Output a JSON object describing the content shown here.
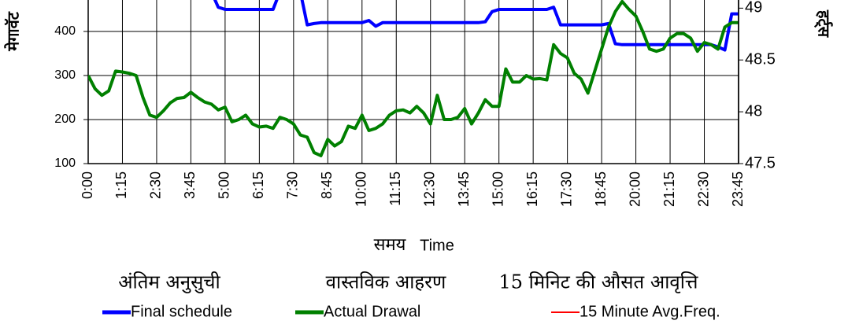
{
  "chart_data": {
    "type": "line",
    "ylabel": "मेगावॅट",
    "y2label": "हर्ट्स",
    "xlabel_hindi": "समय",
    "xlabel": "Time",
    "legend_titles": [
      "अंतिम अनुसुची",
      "वास्तविक आहरण",
      "15 मिनिट की औसत आवृत्ति"
    ],
    "categories": [
      "0:00",
      null,
      null,
      null,
      null,
      "1:15",
      null,
      null,
      null,
      null,
      "2:30",
      null,
      null,
      null,
      null,
      "3:45",
      null,
      null,
      null,
      null,
      "5:00",
      null,
      null,
      null,
      null,
      "6:15",
      null,
      null,
      null,
      null,
      "7:30",
      null,
      null,
      null,
      null,
      "8:45",
      null,
      null,
      null,
      null,
      "10:00",
      null,
      null,
      null,
      null,
      "11:15",
      null,
      null,
      null,
      null,
      "12:30",
      null,
      null,
      null,
      null,
      "13:45",
      null,
      null,
      null,
      null,
      "15:00",
      null,
      null,
      null,
      null,
      "16:15",
      null,
      null,
      null,
      null,
      "17:30",
      null,
      null,
      null,
      null,
      "18:45",
      null,
      null,
      null,
      null,
      "20:00",
      null,
      null,
      null,
      null,
      "21:15",
      null,
      null,
      null,
      null,
      "22:30",
      null,
      null,
      null,
      null,
      "23:45"
    ],
    "ylim": [
      100,
      500
    ],
    "yticks": [
      100,
      200,
      300,
      400
    ],
    "y2lim": [
      47.5,
      49.2
    ],
    "y2ticks": [
      47.5,
      48,
      48.5,
      49
    ],
    "grid": true,
    "series": [
      {
        "name": "Final schedule",
        "color": "#0000ff",
        "values": [
          490,
          490,
          490,
          490,
          490,
          490,
          490,
          490,
          490,
          490,
          490,
          490,
          490,
          490,
          490,
          490,
          490,
          490,
          490,
          455,
          450,
          450,
          450,
          450,
          450,
          450,
          450,
          450,
          490,
          490,
          490,
          490,
          415,
          418,
          420,
          420,
          420,
          420,
          420,
          420,
          420,
          425,
          412,
          420,
          420,
          420,
          420,
          420,
          420,
          420,
          420,
          420,
          420,
          420,
          420,
          420,
          420,
          420,
          422,
          445,
          450,
          450,
          450,
          450,
          450,
          450,
          450,
          450,
          455,
          415,
          415,
          415,
          415,
          415,
          415,
          415,
          418,
          372,
          370,
          370,
          370,
          370,
          370,
          370,
          370,
          370,
          370,
          370,
          370,
          370,
          370,
          370,
          365,
          358,
          440,
          440
        ]
      },
      {
        "name": "Actual Drawal",
        "color": "#008000",
        "values": [
          300,
          270,
          255,
          265,
          310,
          308,
          305,
          300,
          250,
          210,
          205,
          220,
          238,
          248,
          250,
          262,
          250,
          240,
          235,
          222,
          228,
          195,
          200,
          210,
          190,
          183,
          185,
          180,
          205,
          200,
          190,
          165,
          160,
          125,
          118,
          155,
          140,
          150,
          185,
          180,
          210,
          175,
          180,
          190,
          210,
          220,
          222,
          215,
          230,
          215,
          190,
          255,
          200,
          200,
          205,
          225,
          190,
          215,
          245,
          230,
          230,
          315,
          285,
          285,
          300,
          292,
          293,
          290,
          370,
          350,
          340,
          305,
          292,
          260,
          310,
          360,
          410,
          445,
          468,
          450,
          435,
          400,
          360,
          355,
          360,
          385,
          395,
          395,
          385,
          355,
          375,
          370,
          360,
          410,
          420,
          420
        ]
      },
      {
        "name": "15 Minute Avg.Freq.",
        "color": "#ff0000",
        "axis": "y2",
        "values": [
          null,
          null,
          null,
          null,
          null,
          null,
          null,
          null,
          null,
          null,
          null,
          null,
          null,
          null,
          null,
          null,
          null,
          null,
          null,
          null,
          null,
          null,
          null,
          null,
          null,
          null,
          null,
          null,
          null,
          null,
          null,
          null,
          null,
          null,
          null,
          null,
          null,
          null,
          null,
          null,
          null,
          null,
          null,
          null,
          null,
          null,
          null,
          null,
          null,
          null,
          null,
          null,
          null,
          null,
          null,
          null,
          null,
          null,
          null,
          null,
          null,
          null,
          null,
          null,
          null,
          null,
          null,
          null,
          null,
          null,
          null,
          null,
          null,
          null,
          null,
          null,
          null,
          null,
          null,
          null,
          null,
          null,
          null,
          null,
          null,
          null,
          null,
          null,
          null,
          null,
          null,
          null,
          null,
          null,
          null,
          null
        ]
      }
    ]
  }
}
